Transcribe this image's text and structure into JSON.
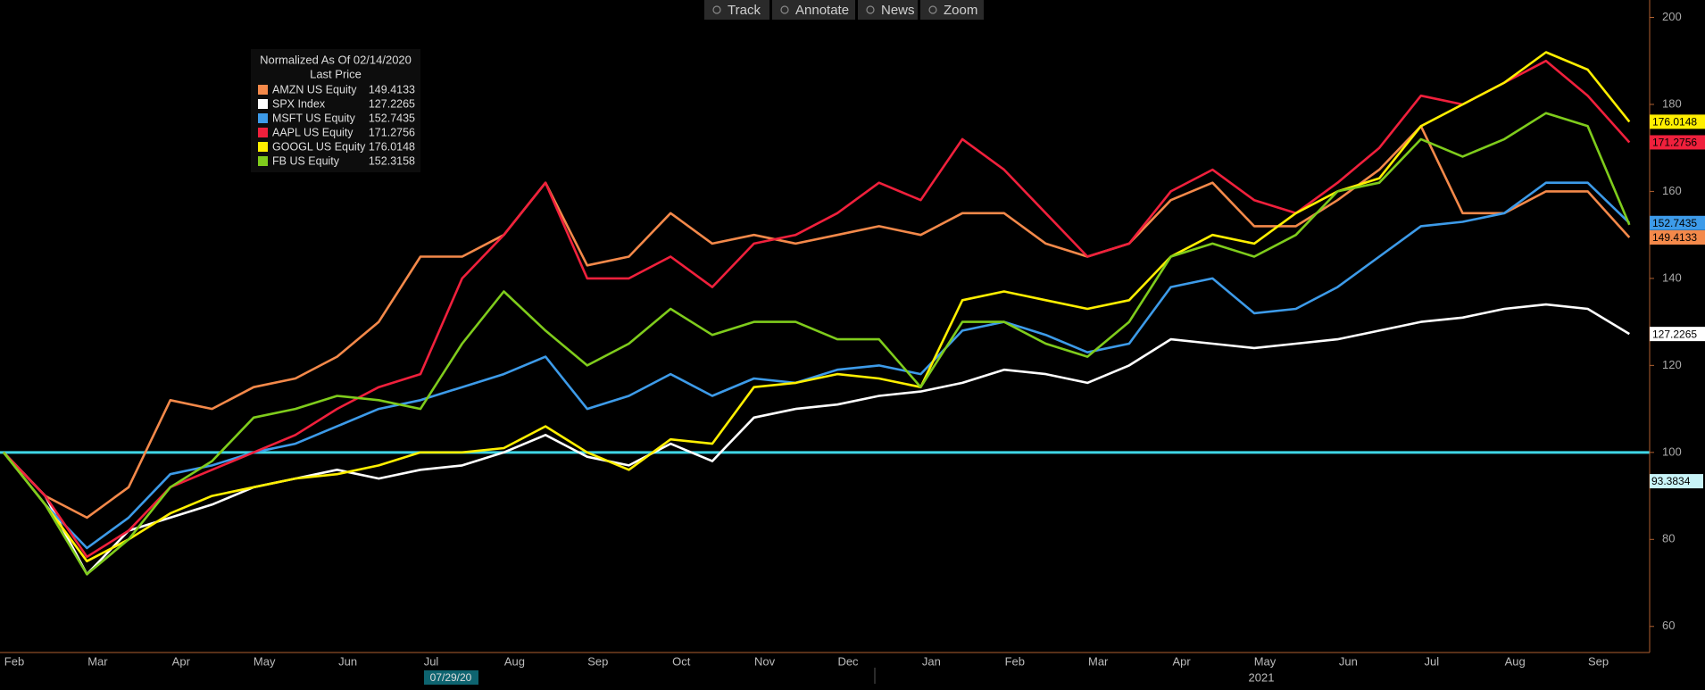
{
  "toolbar": [
    "Track",
    "Annotate",
    "News",
    "Zoom"
  ],
  "chart_data": {
    "type": "line",
    "legend_title": "Normalized As Of 02/14/2020",
    "legend_subtitle": "Last Price",
    "categories": [
      "Feb",
      null,
      "Mar",
      null,
      "Apr",
      null,
      "May",
      null,
      "Jun",
      null,
      "Jul",
      null,
      "Aug",
      null,
      "Sep",
      null,
      "Oct",
      null,
      "Nov",
      null,
      "Dec",
      null,
      "Jan",
      null,
      "Feb",
      null,
      "Mar",
      null,
      "Apr",
      null,
      "May",
      null,
      "Jun",
      null,
      "Jul",
      null,
      "Aug",
      null,
      "Sep",
      null
    ],
    "series": [
      {
        "name": "AMZN US Equity",
        "color": "#f4894a",
        "values": [
          100,
          90,
          85,
          92,
          112,
          110,
          115,
          117,
          122,
          130,
          145,
          145,
          150,
          162,
          143,
          145,
          155,
          148,
          150,
          148,
          150,
          152,
          150,
          155,
          155,
          148,
          145,
          148,
          158,
          162,
          152,
          152,
          158,
          165,
          175,
          155,
          155,
          160,
          160,
          149.4133
        ]
      },
      {
        "name": "SPX Index",
        "color": "#ffffff",
        "values": [
          100,
          90,
          72,
          82,
          85,
          88,
          92,
          94,
          96,
          94,
          96,
          97,
          100,
          104,
          99,
          97,
          102,
          98,
          108,
          110,
          111,
          113,
          114,
          116,
          119,
          118,
          116,
          120,
          126,
          125,
          124,
          125,
          126,
          128,
          130,
          131,
          133,
          134,
          133,
          127.2265
        ]
      },
      {
        "name": "MSFT US Equity",
        "color": "#3d9be9",
        "values": [
          100,
          88,
          78,
          85,
          95,
          97,
          100,
          102,
          106,
          110,
          112,
          115,
          118,
          122,
          110,
          113,
          118,
          113,
          117,
          116,
          119,
          120,
          118,
          128,
          130,
          127,
          123,
          125,
          138,
          140,
          132,
          133,
          138,
          145,
          152,
          153,
          155,
          162,
          162,
          152.7435
        ]
      },
      {
        "name": "AAPL US Equity",
        "color": "#f0203c",
        "values": [
          100,
          90,
          76,
          82,
          92,
          96,
          100,
          104,
          110,
          115,
          118,
          140,
          150,
          162,
          140,
          140,
          145,
          138,
          148,
          150,
          155,
          162,
          158,
          172,
          165,
          155,
          145,
          148,
          160,
          165,
          158,
          155,
          162,
          170,
          182,
          180,
          185,
          190,
          182,
          171.2756
        ]
      },
      {
        "name": "GOOGL US Equity",
        "color": "#ffef00",
        "values": [
          100,
          88,
          75,
          80,
          86,
          90,
          92,
          94,
          95,
          97,
          100,
          100,
          101,
          106,
          100,
          96,
          103,
          102,
          115,
          116,
          118,
          117,
          115,
          135,
          137,
          135,
          133,
          135,
          145,
          150,
          148,
          155,
          160,
          163,
          175,
          180,
          185,
          192,
          188,
          176.0148
        ]
      },
      {
        "name": "FB US Equity",
        "color": "#7fcc1c",
        "values": [
          100,
          88,
          72,
          80,
          92,
          98,
          108,
          110,
          113,
          112,
          110,
          125,
          137,
          128,
          120,
          125,
          133,
          127,
          130,
          130,
          126,
          126,
          115,
          130,
          130,
          125,
          122,
          130,
          145,
          148,
          145,
          150,
          160,
          162,
          172,
          168,
          172,
          178,
          175,
          152.3158
        ]
      }
    ],
    "ylim": [
      54,
      204
    ],
    "yticks": [
      60,
      80,
      100,
      120,
      140,
      160,
      180,
      200
    ],
    "reference_line": {
      "value": 100,
      "color": "#3fd6e6"
    },
    "marker_value": 93.3834,
    "date_marker": "07/29/20",
    "year_label": "2021"
  }
}
